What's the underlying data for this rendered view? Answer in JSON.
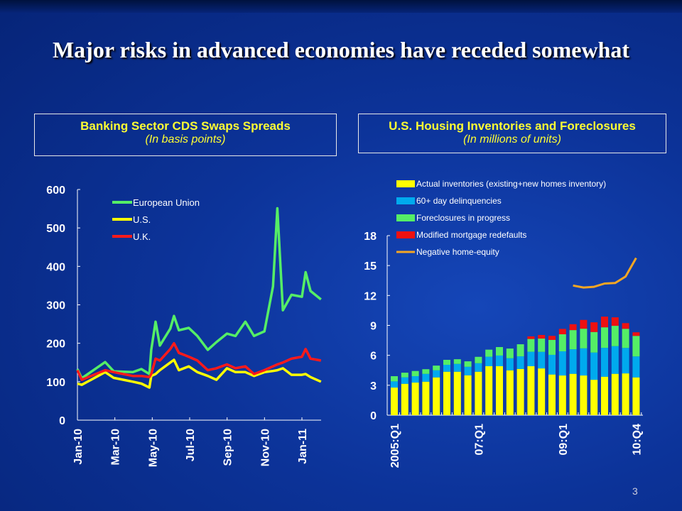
{
  "title": "Major risks in advanced economies have receded somewhat",
  "page_number": "3",
  "chart_data": [
    {
      "type": "line",
      "title": "Banking Sector CDS Swaps Spreads",
      "subtitle": "(In basis points)",
      "ylim": [
        0,
        600
      ],
      "yticks": [
        "0",
        "100",
        "200",
        "300",
        "400",
        "500",
        "600"
      ],
      "xticks": [
        "Jan-10",
        "Mar-10",
        "May-10",
        "Jul-10",
        "Sep-10",
        "Nov-10",
        "Jan-11"
      ],
      "grid": false,
      "legend": "top-left",
      "x": [
        "2010-01-01",
        "2010-01-08",
        "2010-02-15",
        "2010-03-01",
        "2010-04-01",
        "2010-04-15",
        "2010-04-28",
        "2010-05-01",
        "2010-05-08",
        "2010-05-15",
        "2010-06-01",
        "2010-06-07",
        "2010-06-15",
        "2010-07-01",
        "2010-07-15",
        "2010-08-01",
        "2010-08-15",
        "2010-09-01",
        "2010-09-15",
        "2010-10-01",
        "2010-10-15",
        "2010-11-01",
        "2010-11-15",
        "2010-11-22",
        "2010-12-01",
        "2010-12-15",
        "2011-01-01",
        "2011-01-07",
        "2011-01-15",
        "2011-02-01"
      ],
      "series": [
        {
          "name": "European Union",
          "color": "#55ee66",
          "values": [
            133,
            109,
            151,
            127,
            125,
            133,
            120,
            183,
            256,
            194,
            238,
            271,
            234,
            240,
            219,
            183,
            203,
            225,
            219,
            256,
            219,
            231,
            348,
            551,
            286,
            326,
            321,
            385,
            336,
            314
          ]
        },
        {
          "name": "U.S.",
          "color": "#ffff00",
          "values": [
            95,
            92,
            125,
            110,
            100,
            95,
            85,
            115,
            120,
            130,
            150,
            157,
            130,
            140,
            125,
            115,
            105,
            135,
            125,
            125,
            115,
            125,
            128,
            130,
            135,
            118,
            118,
            120,
            112,
            100
          ]
        },
        {
          "name": "U.K.",
          "color": "#ff1a1a",
          "values": [
            130,
            105,
            130,
            125,
            115,
            115,
            112,
            120,
            160,
            155,
            185,
            200,
            175,
            165,
            155,
            130,
            135,
            145,
            135,
            140,
            120,
            130,
            140,
            145,
            150,
            160,
            165,
            185,
            160,
            155
          ]
        }
      ]
    },
    {
      "type": "bar",
      "stacked": true,
      "title": "U.S. Housing Inventories and Foreclosures",
      "subtitle": "(In millions of units)",
      "ylim": [
        0,
        18
      ],
      "yticks": [
        "0",
        "3",
        "6",
        "9",
        "12",
        "15",
        "18"
      ],
      "xticks": [
        "2005:Q1",
        "07:Q1",
        "09:Q1",
        "10:Q4"
      ],
      "grid": false,
      "legend": "top",
      "categories": [
        "2005:Q1",
        "2005:Q2",
        "2005:Q3",
        "2005:Q4",
        "2006:Q1",
        "2006:Q2",
        "2006:Q3",
        "2006:Q4",
        "2007:Q1",
        "2007:Q2",
        "2007:Q3",
        "2007:Q4",
        "2008:Q1",
        "2008:Q2",
        "2008:Q3",
        "2008:Q4",
        "2009:Q1",
        "2009:Q2",
        "2009:Q3",
        "2009:Q4",
        "2010:Q1",
        "2010:Q2",
        "2010:Q3",
        "2010:Q4"
      ],
      "series": [
        {
          "name": "Actual inventories (existing+new  homes inventory)",
          "color": "#ffff00",
          "values": [
            2.77,
            3.15,
            3.27,
            3.36,
            3.79,
            4.36,
            4.36,
            4.0,
            4.36,
            4.91,
            4.91,
            4.5,
            4.64,
            4.91,
            4.69,
            4.08,
            3.98,
            4.15,
            3.98,
            3.55,
            3.86,
            4.15,
            4.19,
            3.79
          ]
        },
        {
          "name": "60+ day delinquencies",
          "color": "#00aaee",
          "values": [
            0.62,
            0.64,
            0.64,
            0.78,
            0.71,
            0.69,
            0.78,
            0.85,
            0.85,
            0.95,
            1.07,
            1.21,
            1.26,
            1.45,
            1.66,
            1.97,
            2.42,
            2.46,
            2.72,
            2.73,
            2.89,
            2.77,
            2.55,
            2.1
          ]
        },
        {
          "name": "Foreclosures in progress",
          "color": "#55ee66",
          "values": [
            0.52,
            0.47,
            0.52,
            0.47,
            0.47,
            0.5,
            0.47,
            0.55,
            0.64,
            0.71,
            0.85,
            0.97,
            1.21,
            1.28,
            1.33,
            1.5,
            1.71,
            1.92,
            1.97,
            2.06,
            2.06,
            2.04,
            1.92,
            2.06
          ]
        },
        {
          "name": "Modified mortgage redefaults",
          "color": "#ee1111",
          "values": [
            0,
            0,
            0,
            0,
            0,
            0,
            0,
            0,
            0,
            0,
            0,
            0,
            0,
            0.26,
            0.36,
            0.4,
            0.54,
            0.59,
            0.88,
            0.97,
            1.07,
            0.85,
            0.57,
            0.36
          ]
        }
      ],
      "line_series": {
        "name": "Negative home-equity",
        "color": "#f5a623",
        "values": [
          null,
          null,
          null,
          null,
          null,
          null,
          null,
          null,
          null,
          null,
          null,
          null,
          null,
          null,
          null,
          null,
          null,
          13.0,
          12.8,
          12.87,
          13.2,
          13.25,
          13.9,
          15.76
        ]
      }
    }
  ]
}
